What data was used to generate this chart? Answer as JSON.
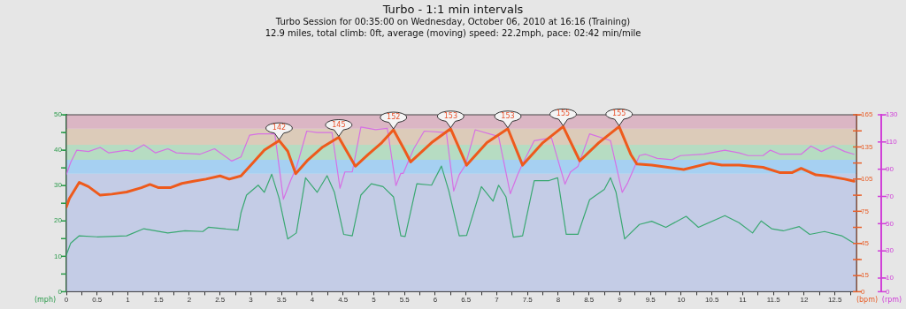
{
  "chart_data": {
    "type": "line",
    "title": "Turbo - 1:1 min intervals",
    "subtitle": "Turbo Session for 00:35:00 on Wednesday, October 06, 2010 at 16:16 (Training)",
    "annotations": [
      "12.9 miles, total climb: 0ft, average (moving) speed: 22.2mph, pace: 02:42 min/mile",
      {
        "text": "142",
        "x": 3.46,
        "y": 141
      },
      {
        "text": "145",
        "x": 4.43,
        "y": 144
      },
      {
        "text": "152",
        "x": 5.32,
        "y": 151
      },
      {
        "text": "153",
        "x": 6.25,
        "y": 152
      },
      {
        "text": "153",
        "x": 7.18,
        "y": 152
      },
      {
        "text": "155",
        "x": 8.08,
        "y": 154
      },
      {
        "text": "155",
        "x": 8.99,
        "y": 154
      }
    ],
    "xlim": [
      0,
      12.85
    ],
    "xticks": [
      0,
      {
        "value": 0.25,
        "label": null
      },
      0.5,
      {
        "value": 0.75,
        "label": null
      },
      1,
      {
        "value": 1.25,
        "label": null
      },
      1.5,
      {
        "value": 1.75,
        "label": null
      },
      2,
      {
        "value": 2.25,
        "label": null
      },
      2.5,
      {
        "value": 2.75,
        "label": null
      },
      3,
      {
        "value": 3.25,
        "label": null
      },
      3.5,
      {
        "value": 3.75,
        "label": null
      },
      4,
      {
        "value": 4.25,
        "label": null
      },
      4.5,
      {
        "value": 4.75,
        "label": null
      },
      5,
      {
        "value": 5.25,
        "label": null
      },
      5.5,
      {
        "value": 5.75,
        "label": null
      },
      6,
      {
        "value": 6.25,
        "label": null
      },
      6.5,
      {
        "value": 6.75,
        "label": null
      },
      7,
      {
        "value": 7.25,
        "label": null
      },
      7.5,
      {
        "value": 7.75,
        "label": null
      },
      8,
      {
        "value": 8.25,
        "label": null
      },
      8.5,
      {
        "value": 8.75,
        "label": null
      },
      9,
      {
        "value": 9.25,
        "label": null
      },
      9.5,
      {
        "value": 9.75,
        "label": null
      },
      10,
      {
        "value": 10.25,
        "label": null
      },
      10.5,
      {
        "value": 10.75,
        "label": null
      },
      11,
      {
        "value": 11.25,
        "label": null
      },
      11.5,
      {
        "value": 11.75,
        "label": null
      },
      12,
      {
        "value": 12.25,
        "label": null
      },
      12.5,
      {
        "value": 12.75,
        "label": null
      }
    ],
    "ylabel": "(bpm)",
    "ylim": [
      0,
      165
    ],
    "yticks": [
      0,
      15,
      {
        "value": 30,
        "label": null
      },
      45,
      {
        "value": 60,
        "label": null
      },
      75,
      {
        "value": 90,
        "label": null
      },
      105,
      {
        "value": 120,
        "label": null
      },
      135,
      {
        "value": 150,
        "label": null
      },
      165
    ],
    "y2label": "(rpm)",
    "y2lim": [
      0,
      130
    ],
    "y2ticks": [
      0,
      10,
      30,
      50,
      70,
      90,
      110,
      130
    ],
    "y3label": "(mph)",
    "y3lim": [
      0,
      50
    ],
    "y3ticks": [
      0,
      {
        "value": 5,
        "label": null
      },
      10,
      {
        "value": 15,
        "label": null
      },
      20,
      {
        "value": 25,
        "label": null
      },
      30,
      {
        "value": 35,
        "label": null
      },
      40,
      {
        "value": 45,
        "label": null
      },
      50
    ],
    "bands": [
      {
        "axis": "y",
        "from": 0,
        "to": 110,
        "color": "#c4cce6"
      },
      {
        "axis": "y",
        "from": 110,
        "to": 123,
        "color": "#a6d0f2"
      },
      {
        "axis": "y",
        "from": 123,
        "to": 137,
        "color": "#b6dcc2"
      },
      {
        "axis": "y",
        "from": 137,
        "to": 152,
        "color": "#dccbb9"
      },
      {
        "axis": "y",
        "from": 152,
        "to": 165,
        "color": "#dbb6c4"
      }
    ],
    "series": [
      {
        "color": "#ee5a1c",
        "x": [
          0,
          0.05,
          0.21,
          0.36,
          0.55,
          0.74,
          0.98,
          1.22,
          1.36,
          1.5,
          1.69,
          1.88,
          2.07,
          2.27,
          2.5,
          2.65,
          2.84,
          3.03,
          3.22,
          3.46,
          3.6,
          3.73,
          3.93,
          4.17,
          4.43,
          4.7,
          4.91,
          5.13,
          5.32,
          5.51,
          5.6,
          5.94,
          6.25,
          6.51,
          6.84,
          7.18,
          7.42,
          7.75,
          8.08,
          8.35,
          8.66,
          8.99,
          9.18,
          9.28,
          9.52,
          10.04,
          10.47,
          10.66,
          10.94,
          11.33,
          11.61,
          11.8,
          11.95,
          12.19,
          12.37,
          12.66,
          12.81
        ],
        "values": [
          79,
          87,
          102,
          98,
          90,
          91,
          93,
          97,
          100,
          97,
          97,
          101,
          103,
          105,
          108,
          105,
          108,
          120,
          132,
          141,
          131,
          110,
          123,
          135,
          144,
          117,
          128,
          139,
          151,
          131,
          121,
          139,
          152,
          118,
          139,
          152,
          118,
          139,
          154,
          122,
          139,
          154,
          128,
          119,
          118,
          114,
          120,
          118,
          118,
          116,
          111,
          111,
          115,
          109,
          108,
          105,
          103
        ]
      },
      {
        "color": "#d670e4",
        "axis": "y2",
        "x": [
          0,
          0.07,
          0.17,
          0.36,
          0.55,
          0.69,
          0.98,
          1.07,
          1.26,
          1.45,
          1.65,
          1.79,
          2.17,
          2.41,
          2.69,
          2.84,
          2.98,
          3.12,
          3.39,
          3.53,
          3.65,
          3.74,
          3.91,
          4.08,
          4.32,
          4.45,
          4.53,
          4.65,
          4.79,
          5.03,
          5.22,
          5.36,
          5.44,
          5.48,
          5.65,
          5.82,
          6.18,
          6.3,
          6.39,
          6.49,
          6.65,
          7.03,
          7.22,
          7.34,
          7.41,
          7.61,
          7.89,
          8.11,
          8.2,
          8.32,
          8.51,
          8.85,
          9.04,
          9.13,
          9.32,
          9.42,
          9.61,
          9.85,
          9.99,
          10.37,
          10.71,
          10.94,
          11.09,
          11.33,
          11.45,
          11.61,
          11.95,
          12.11,
          12.28,
          12.47,
          12.66,
          12.81
        ],
        "values": [
          86,
          95,
          104,
          103,
          106,
          102,
          104,
          103,
          108,
          102,
          105,
          102,
          101,
          105,
          96,
          99,
          115,
          116,
          116,
          68,
          82,
          91,
          118,
          117,
          117,
          76,
          88,
          88,
          121,
          119,
          120,
          78,
          87,
          87,
          105,
          118,
          117,
          74,
          86,
          93,
          119,
          114,
          72,
          86,
          93,
          111,
          113,
          79,
          88,
          92,
          116,
          111,
          73,
          80,
          100,
          101,
          98,
          97,
          100,
          101,
          104,
          102,
          100,
          100,
          104,
          101,
          101,
          107,
          103,
          107,
          103,
          101
        ]
      },
      {
        "color": "#3aa872",
        "axis": "y3",
        "x": [
          0,
          0.07,
          0.21,
          0.5,
          0.98,
          1.26,
          1.65,
          1.93,
          2.22,
          2.31,
          2.79,
          2.84,
          2.93,
          3.12,
          3.22,
          3.34,
          3.46,
          3.6,
          3.74,
          3.89,
          4.08,
          4.24,
          4.36,
          4.51,
          4.65,
          4.79,
          4.96,
          5.15,
          5.32,
          5.44,
          5.51,
          5.7,
          5.94,
          6.1,
          6.22,
          6.39,
          6.51,
          6.75,
          6.94,
          7.03,
          7.15,
          7.27,
          7.42,
          7.61,
          7.85,
          7.99,
          8.13,
          8.32,
          8.51,
          8.75,
          8.85,
          8.94,
          9.08,
          9.32,
          9.52,
          9.75,
          10.08,
          10.28,
          10.71,
          10.94,
          11.16,
          11.3,
          11.47,
          11.66,
          11.92,
          12.09,
          12.33,
          12.61,
          12.81
        ],
        "values": [
          10.4,
          13.7,
          15.8,
          15.5,
          15.8,
          17.8,
          16.6,
          17.2,
          17,
          18.2,
          17.4,
          22.3,
          27.3,
          30.1,
          28.1,
          33.2,
          26.4,
          14.9,
          16.6,
          32.2,
          28.1,
          32.8,
          28.1,
          16.2,
          15.8,
          27.3,
          30.5,
          29.7,
          26.8,
          15.8,
          15.6,
          30.5,
          30.1,
          35.5,
          28.5,
          15.8,
          15.9,
          29.7,
          25.6,
          30.1,
          26.8,
          15.4,
          15.8,
          31.4,
          31.4,
          32.2,
          16.2,
          16.2,
          26,
          28.9,
          32.2,
          28.1,
          14.9,
          19,
          19.9,
          18.2,
          21.3,
          18.2,
          21.5,
          19.5,
          16.6,
          20,
          17.8,
          17.2,
          18.4,
          16.2,
          17,
          15.8,
          13.7
        ]
      }
    ]
  }
}
